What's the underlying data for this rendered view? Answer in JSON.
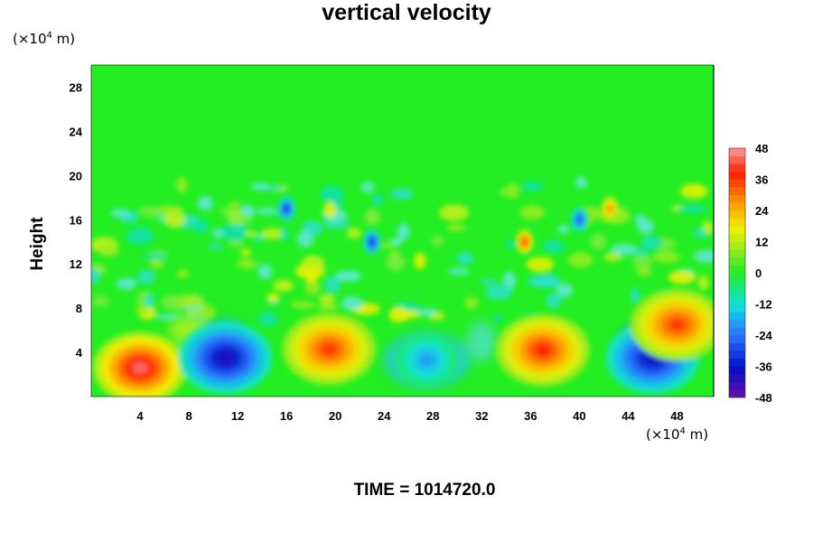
{
  "chart_data": {
    "type": "heatmap",
    "title": "vertical velocity",
    "ylabel": "Height",
    "x_unit": "(×10⁴ m)",
    "y_unit": "(×10⁴ m)",
    "x_unit_base": "(×10",
    "x_unit_exp": "4",
    "x_unit_suffix": " m)",
    "y_unit_base": "(×10",
    "y_unit_exp": "4",
    "y_unit_suffix": " m)",
    "xlim": [
      0,
      51
    ],
    "ylim": [
      0,
      30
    ],
    "x_ticks": [
      4,
      8,
      12,
      16,
      20,
      24,
      28,
      32,
      36,
      40,
      44,
      48
    ],
    "y_ticks": [
      4,
      8,
      12,
      16,
      20,
      24,
      28
    ],
    "colorbar": {
      "range": [
        -48,
        48
      ],
      "ticks": [
        48,
        36,
        24,
        12,
        0,
        -12,
        -24,
        -36,
        -48
      ],
      "colormap": "rainbow (purple-blue-cyan-green-yellow-orange-red-pink)"
    },
    "features": [
      {
        "x": 4,
        "y": 2.6,
        "value": 44,
        "kind": "updraft"
      },
      {
        "x": 11,
        "y": 3.5,
        "value": -40,
        "kind": "downdraft"
      },
      {
        "x": 19.5,
        "y": 4.3,
        "value": 36,
        "kind": "updraft"
      },
      {
        "x": 27.5,
        "y": 3.3,
        "value": -20,
        "kind": "downdraft"
      },
      {
        "x": 37,
        "y": 4.2,
        "value": 38,
        "kind": "updraft"
      },
      {
        "x": 46,
        "y": 3.5,
        "value": -38,
        "kind": "downdraft"
      },
      {
        "x": 48,
        "y": 6.5,
        "value": 36,
        "kind": "updraft"
      },
      {
        "x": 35.5,
        "y": 14,
        "value": 38,
        "kind": "updraft"
      },
      {
        "x": 42.5,
        "y": 17,
        "value": 30,
        "kind": "updraft"
      },
      {
        "x": 16,
        "y": 17,
        "value": -34,
        "kind": "downdraft"
      },
      {
        "x": 23,
        "y": 14,
        "value": -34,
        "kind": "downdraft"
      },
      {
        "x": 40,
        "y": 16,
        "value": -30,
        "kind": "downdraft"
      }
    ]
  },
  "footer": {
    "time_label": "TIME = 1014720.0"
  }
}
